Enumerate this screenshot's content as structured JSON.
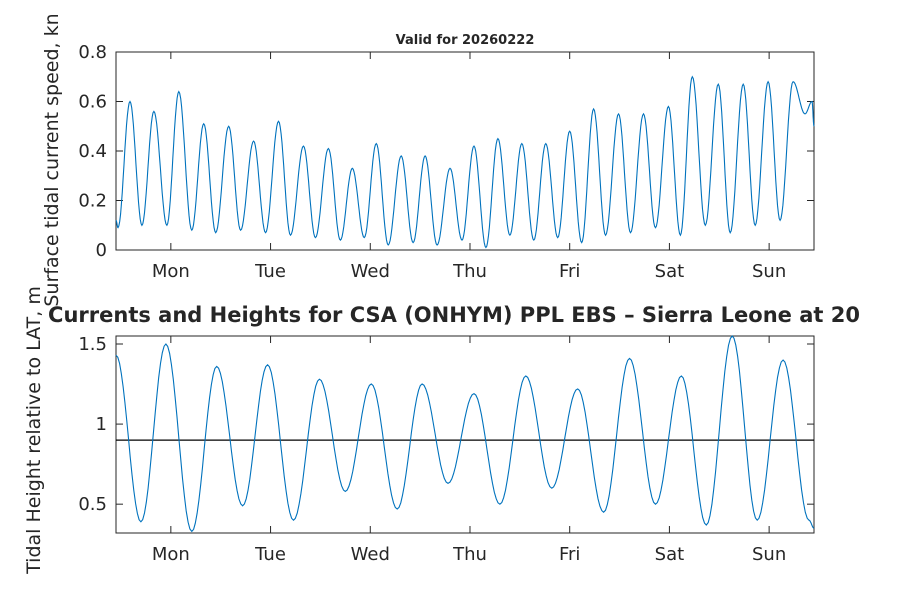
{
  "figure_title": "Currents and Heights for CSA (ONHYM) PPL EBS  – Sierra Leone at 20",
  "chart_data": [
    {
      "type": "line",
      "title": "Valid for 20260222",
      "xlabel": "",
      "ylabel": "Surface tidal current speed, kn",
      "xlim": [
        0,
        7
      ],
      "ylim": [
        0,
        0.8
      ],
      "yticks": [
        0,
        0.2,
        0.4,
        0.6,
        0.8
      ],
      "ytick_labels": [
        "0",
        "0.2",
        "0.4",
        "0.6",
        "0.8"
      ],
      "xticks": [
        0.55,
        1.55,
        2.55,
        3.55,
        4.55,
        5.55,
        6.55
      ],
      "xtick_labels": [
        "Mon",
        "Tue",
        "Wed",
        "Thu",
        "Fri",
        "Sat",
        "Sun"
      ],
      "color": "#0072bd",
      "series": [
        {
          "name": "Current speed",
          "x": [
            0,
            0.02,
            0.14,
            0.26,
            0.38,
            0.51,
            0.63,
            0.76,
            0.88,
            1.0,
            1.13,
            1.25,
            1.38,
            1.5,
            1.63,
            1.75,
            1.88,
            2.0,
            2.13,
            2.25,
            2.37,
            2.49,
            2.61,
            2.73,
            2.86,
            2.98,
            3.1,
            3.22,
            3.35,
            3.47,
            3.59,
            3.71,
            3.83,
            3.95,
            4.07,
            4.19,
            4.31,
            4.43,
            4.55,
            4.67,
            4.79,
            4.91,
            5.04,
            5.16,
            5.29,
            5.41,
            5.54,
            5.66,
            5.78,
            5.91,
            6.04,
            6.16,
            6.29,
            6.41,
            6.54,
            6.66,
            6.79,
            6.91,
            6.98,
            7.0
          ],
          "y": [
            0.12,
            0.09,
            0.6,
            0.1,
            0.56,
            0.1,
            0.64,
            0.08,
            0.51,
            0.07,
            0.5,
            0.08,
            0.44,
            0.07,
            0.52,
            0.06,
            0.42,
            0.05,
            0.41,
            0.04,
            0.33,
            0.05,
            0.43,
            0.02,
            0.38,
            0.03,
            0.38,
            0.02,
            0.33,
            0.04,
            0.42,
            0.01,
            0.45,
            0.06,
            0.43,
            0.04,
            0.43,
            0.05,
            0.48,
            0.03,
            0.57,
            0.06,
            0.55,
            0.07,
            0.55,
            0.09,
            0.58,
            0.06,
            0.7,
            0.1,
            0.67,
            0.07,
            0.67,
            0.1,
            0.68,
            0.12,
            0.68,
            0.55,
            0.6,
            0.5
          ]
        }
      ]
    },
    {
      "type": "line",
      "title": "",
      "xlabel": "",
      "ylabel": "Tidal Height relative to LAT, m",
      "xlim": [
        0,
        7
      ],
      "ylim": [
        0.32,
        1.55
      ],
      "yticks": [
        0.5,
        1,
        1.5
      ],
      "ytick_labels": [
        "0.5",
        "1",
        "1.5"
      ],
      "xticks": [
        0.55,
        1.55,
        2.55,
        3.55,
        4.55,
        5.55,
        6.55
      ],
      "xtick_labels": [
        "Mon",
        "Tue",
        "Wed",
        "Thu",
        "Fri",
        "Sat",
        "Sun"
      ],
      "reference_line": 0.9,
      "color": "#0072bd",
      "series": [
        {
          "name": "Tidal height",
          "x": [
            0,
            0.25,
            0.5,
            0.76,
            1.01,
            1.27,
            1.52,
            1.78,
            2.04,
            2.3,
            2.56,
            2.82,
            3.07,
            3.33,
            3.59,
            3.85,
            4.11,
            4.37,
            4.63,
            4.89,
            5.15,
            5.41,
            5.67,
            5.92,
            6.18,
            6.43,
            6.69,
            6.95,
            7.0
          ],
          "y": [
            1.43,
            0.39,
            1.5,
            0.33,
            1.36,
            0.49,
            1.37,
            0.4,
            1.28,
            0.58,
            1.25,
            0.47,
            1.25,
            0.63,
            1.19,
            0.5,
            1.3,
            0.6,
            1.22,
            0.45,
            1.41,
            0.5,
            1.3,
            0.37,
            1.55,
            0.4,
            1.4,
            0.4,
            0.35
          ]
        }
      ]
    }
  ]
}
